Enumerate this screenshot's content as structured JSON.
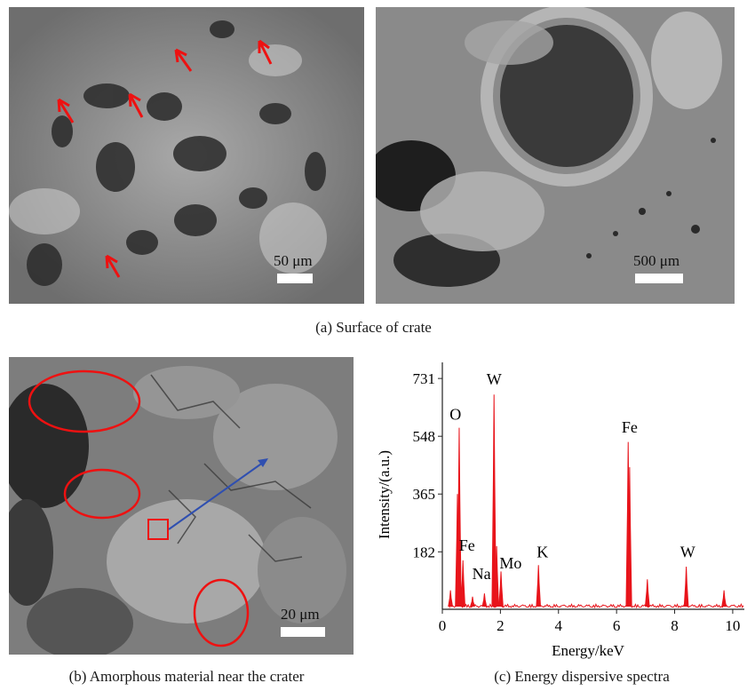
{
  "panel_a": {
    "left_scale": "50 μm",
    "right_scale": "500 μm",
    "caption": "(a) Surface of crate"
  },
  "panel_b": {
    "scale": "20 μm",
    "caption": "(b) Amorphous material near the crater"
  },
  "panel_c": {
    "caption": "(c) Energy dispersive spectra"
  },
  "chart_data": {
    "type": "line",
    "xlabel": "Energy/keV",
    "ylabel": "Intensity/(a.u.)",
    "xlim": [
      0,
      10.4
    ],
    "ylim": [
      0,
      782
    ],
    "xticks": [
      0,
      2,
      4,
      6,
      8,
      10
    ],
    "yticks": [
      182,
      365,
      548,
      731
    ],
    "color": "#e8141b",
    "peaks": [
      {
        "x": 0.28,
        "y": 60
      },
      {
        "x": 0.52,
        "y": 365
      },
      {
        "x": 0.58,
        "y": 575
      },
      {
        "x": 0.71,
        "y": 155
      },
      {
        "x": 1.04,
        "y": 40
      },
      {
        "x": 1.45,
        "y": 50
      },
      {
        "x": 1.78,
        "y": 680
      },
      {
        "x": 1.87,
        "y": 200
      },
      {
        "x": 2.02,
        "y": 120
      },
      {
        "x": 3.31,
        "y": 140
      },
      {
        "x": 6.4,
        "y": 530
      },
      {
        "x": 6.45,
        "y": 450
      },
      {
        "x": 7.06,
        "y": 95
      },
      {
        "x": 8.4,
        "y": 135
      },
      {
        "x": 9.7,
        "y": 60
      }
    ],
    "annotations": [
      {
        "label": "O",
        "x": 0.45,
        "y": 600
      },
      {
        "label": "W",
        "x": 1.78,
        "y": 712
      },
      {
        "label": "Fe",
        "x": 0.85,
        "y": 185
      },
      {
        "label": "Na",
        "x": 1.35,
        "y": 95
      },
      {
        "label": "Mo",
        "x": 2.35,
        "y": 130
      },
      {
        "label": "K",
        "x": 3.45,
        "y": 165
      },
      {
        "label": "Fe",
        "x": 6.45,
        "y": 560
      },
      {
        "label": "W",
        "x": 8.45,
        "y": 165
      }
    ]
  }
}
